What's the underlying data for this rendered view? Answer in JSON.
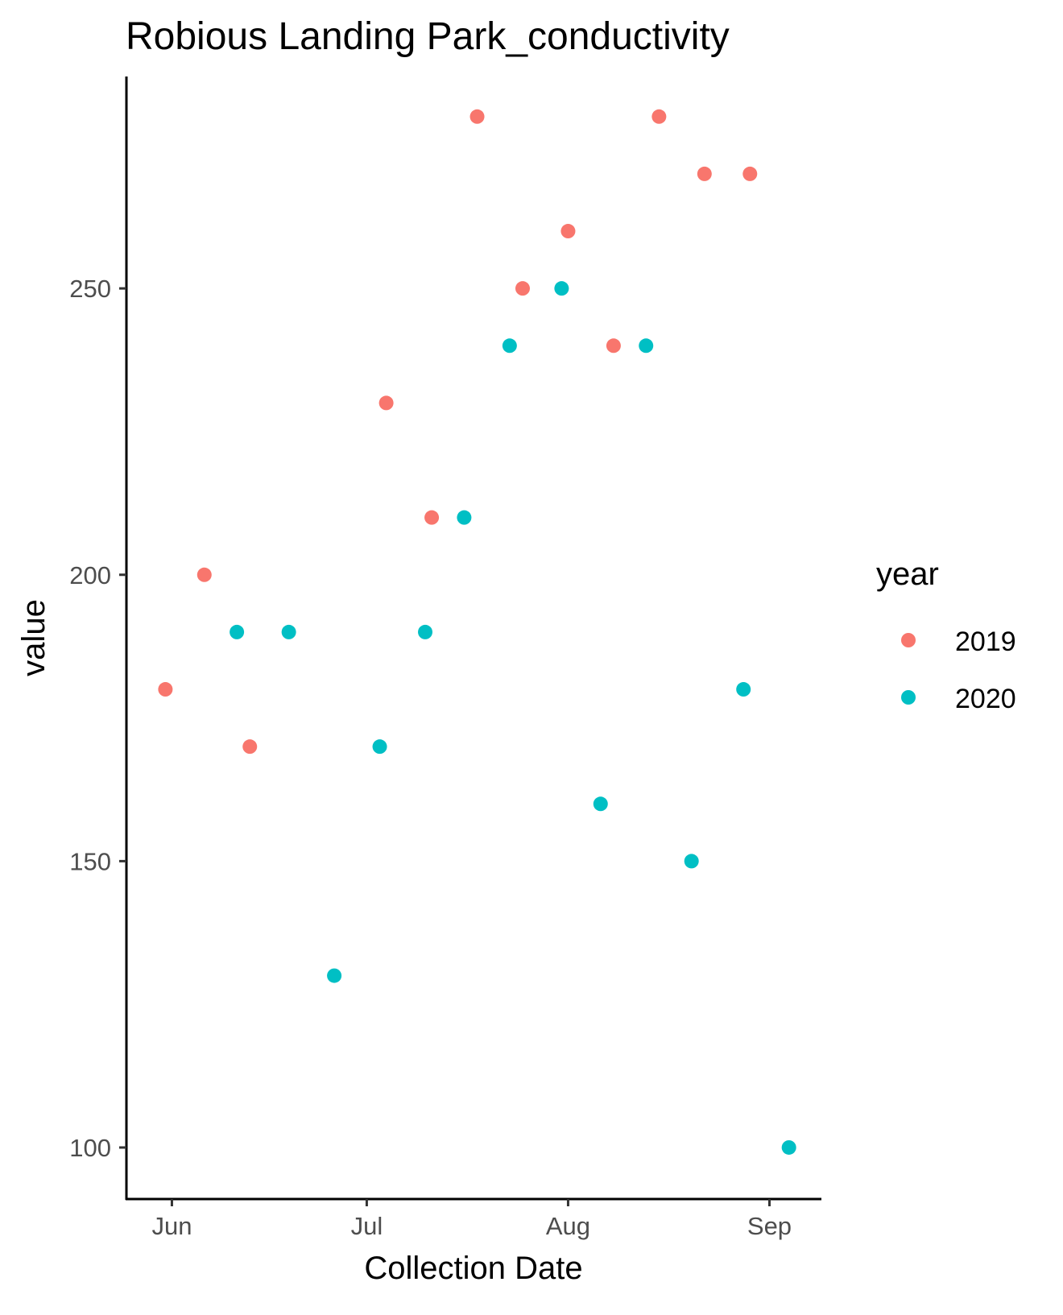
{
  "chart_data": {
    "type": "scatter",
    "title": "Robious Landing Park_conductivity",
    "xlabel": "Collection Date",
    "ylabel": "value",
    "x_axis_type": "date",
    "x_ticks": [
      {
        "date": "2000-06-01",
        "label": "Jun"
      },
      {
        "date": "2000-07-01",
        "label": "Jul"
      },
      {
        "date": "2000-08-01",
        "label": "Aug"
      },
      {
        "date": "2000-09-01",
        "label": "Sep"
      }
    ],
    "xlim": [
      "2000-05-25",
      "2000-09-09"
    ],
    "y_ticks": [
      100,
      150,
      200,
      250
    ],
    "ylim": [
      91,
      287
    ],
    "grid": false,
    "legend": {
      "title": "year",
      "position": "right"
    },
    "series": [
      {
        "name": "2019",
        "color": "#F8766D",
        "points": [
          {
            "x": "2000-05-31",
            "y": 180
          },
          {
            "x": "2000-06-06",
            "y": 200
          },
          {
            "x": "2000-06-13",
            "y": 170
          },
          {
            "x": "2000-07-04",
            "y": 230
          },
          {
            "x": "2000-07-11",
            "y": 210
          },
          {
            "x": "2000-07-18",
            "y": 280
          },
          {
            "x": "2000-07-25",
            "y": 250
          },
          {
            "x": "2000-08-01",
            "y": 260
          },
          {
            "x": "2000-08-08",
            "y": 240
          },
          {
            "x": "2000-08-15",
            "y": 280
          },
          {
            "x": "2000-08-22",
            "y": 270
          },
          {
            "x": "2000-08-29",
            "y": 270
          }
        ]
      },
      {
        "name": "2020",
        "color": "#00BFC4",
        "points": [
          {
            "x": "2000-06-11",
            "y": 190
          },
          {
            "x": "2000-06-19",
            "y": 190
          },
          {
            "x": "2000-06-26",
            "y": 130
          },
          {
            "x": "2000-07-03",
            "y": 170
          },
          {
            "x": "2000-07-10",
            "y": 190
          },
          {
            "x": "2000-07-16",
            "y": 210
          },
          {
            "x": "2000-07-23",
            "y": 240
          },
          {
            "x": "2000-07-31",
            "y": 250
          },
          {
            "x": "2000-08-06",
            "y": 160
          },
          {
            "x": "2000-08-13",
            "y": 240
          },
          {
            "x": "2000-08-20",
            "y": 150
          },
          {
            "x": "2000-08-28",
            "y": 180
          },
          {
            "x": "2000-09-04",
            "y": 100
          }
        ]
      }
    ]
  }
}
